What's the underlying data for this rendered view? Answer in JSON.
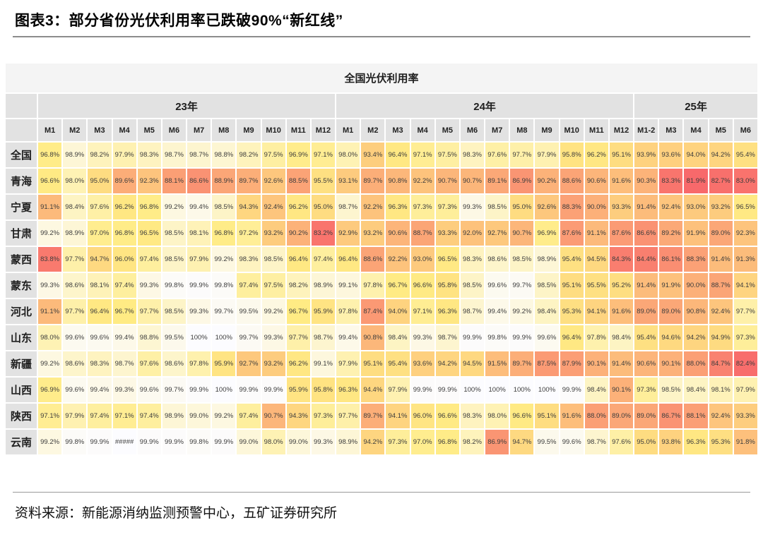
{
  "figure_title": "图表3：部分省份光伏利用率已跌破90%“新红线”",
  "source": "资料来源：新能源消纳监测预警中心，五矿证券研究所",
  "colors": {
    "scale_low": "#F8696B",
    "scale_mid": "#FFEB84",
    "scale_high": "#FCFCFF",
    "header_bg": "#e2e2e2",
    "title_strip_bg": "#f4f4f4"
  },
  "chart_data": {
    "type": "heatmap",
    "title": "全国光伏利用率",
    "year_groups": [
      {
        "label": "23年",
        "span": 12
      },
      {
        "label": "24年",
        "span": 12
      },
      {
        "label": "25年",
        "span": 5
      }
    ],
    "columns": [
      "M1",
      "M2",
      "M3",
      "M4",
      "M5",
      "M6",
      "M7",
      "M8",
      "M9",
      "M10",
      "M11",
      "M12",
      "M1",
      "M2",
      "M3",
      "M4",
      "M5",
      "M6",
      "M7",
      "M8",
      "M9",
      "M10",
      "M11",
      "M12",
      "M1-2",
      "M3",
      "M4",
      "M5",
      "M6"
    ],
    "unit": "%",
    "rows": [
      {
        "label": "全国",
        "values": [
          96.8,
          98.9,
          98.2,
          97.9,
          98.3,
          98.7,
          98.7,
          98.8,
          98.2,
          97.5,
          96.9,
          97.1,
          98.0,
          93.4,
          96.4,
          97.1,
          97.5,
          98.3,
          97.6,
          97.7,
          97.9,
          95.8,
          96.2,
          95.1,
          93.9,
          93.6,
          94.0,
          94.2,
          95.4
        ]
      },
      {
        "label": "青海",
        "values": [
          96.6,
          98.0,
          95.0,
          89.6,
          92.3,
          88.1,
          86.6,
          88.9,
          89.7,
          92.6,
          88.5,
          95.5,
          93.1,
          89.7,
          90.8,
          92.2,
          90.7,
          90.7,
          89.1,
          86.9,
          90.2,
          88.6,
          90.6,
          91.6,
          90.3,
          83.3,
          81.9,
          82.7,
          83.0
        ]
      },
      {
        "label": "宁夏",
        "values": [
          91.1,
          98.4,
          97.6,
          96.2,
          96.8,
          99.2,
          99.4,
          98.5,
          94.3,
          92.4,
          96.2,
          95.0,
          98.7,
          92.2,
          96.3,
          97.3,
          97.3,
          99.3,
          98.5,
          95.0,
          92.6,
          88.3,
          90.0,
          93.3,
          91.4,
          92.4,
          93.0,
          93.2,
          96.5
        ]
      },
      {
        "label": "甘肃",
        "values": [
          99.2,
          98.9,
          97.0,
          96.8,
          96.5,
          98.5,
          98.1,
          96.8,
          97.2,
          93.2,
          90.2,
          83.2,
          92.9,
          93.2,
          90.6,
          88.7,
          93.3,
          92.0,
          92.7,
          90.7,
          96.9,
          87.6,
          91.1,
          87.6,
          86.6,
          89.2,
          91.9,
          89.0,
          92.3
        ]
      },
      {
        "label": "蒙西",
        "values": [
          83.8,
          97.7,
          94.7,
          96.0,
          97.4,
          98.5,
          97.9,
          99.2,
          98.3,
          98.5,
          96.4,
          97.4,
          96.4,
          88.6,
          92.2,
          93.0,
          96.5,
          98.3,
          98.6,
          98.5,
          98.9,
          95.4,
          94.5,
          84.3,
          84.4,
          86.1,
          88.3,
          91.4,
          91.3
        ]
      },
      {
        "label": "蒙东",
        "values": [
          99.3,
          98.6,
          98.1,
          97.4,
          99.3,
          99.8,
          99.9,
          99.8,
          97.4,
          97.5,
          98.2,
          98.9,
          99.1,
          97.8,
          96.7,
          96.6,
          95.8,
          98.5,
          99.6,
          99.7,
          98.5,
          95.1,
          95.5,
          95.2,
          91.4,
          91.9,
          90.0,
          88.7,
          94.1
        ]
      },
      {
        "label": "河北",
        "values": [
          91.1,
          97.7,
          96.4,
          96.7,
          97.7,
          98.5,
          99.3,
          99.7,
          99.5,
          99.2,
          96.7,
          95.9,
          97.8,
          87.4,
          94.0,
          97.1,
          96.3,
          98.7,
          99.4,
          99.2,
          98.4,
          95.3,
          94.1,
          91.6,
          89.0,
          89.0,
          90.8,
          92.4,
          97.7
        ]
      },
      {
        "label": "山东",
        "values": [
          98.0,
          99.6,
          99.6,
          99.4,
          98.8,
          99.5,
          100,
          100,
          99.7,
          99.3,
          97.7,
          98.7,
          99.4,
          90.8,
          98.4,
          99.3,
          98.7,
          99.9,
          99.8,
          99.9,
          99.6,
          96.4,
          97.8,
          98.4,
          95.4,
          94.6,
          94.2,
          94.9,
          97.3
        ]
      },
      {
        "label": "新疆",
        "values": [
          99.2,
          98.6,
          98.3,
          98.7,
          97.6,
          98.6,
          97.8,
          95.9,
          92.7,
          93.2,
          96.2,
          99.1,
          97.9,
          95.1,
          95.4,
          93.6,
          94.2,
          94.5,
          91.5,
          89.7,
          87.5,
          87.9,
          90.1,
          91.4,
          90.6,
          90.1,
          88.0,
          84.7,
          82.4
        ]
      },
      {
        "label": "山西",
        "values": [
          96.9,
          99.6,
          99.4,
          99.3,
          99.6,
          99.7,
          99.9,
          100,
          99.9,
          99.9,
          95.9,
          95.8,
          96.3,
          94.4,
          97.9,
          99.9,
          99.9,
          100,
          100,
          100,
          100,
          99.9,
          98.4,
          90.1,
          97.3,
          98.5,
          98.4,
          98.1,
          97.9
        ]
      },
      {
        "label": "陕西",
        "values": [
          97.1,
          97.9,
          97.4,
          97.1,
          97.4,
          98.9,
          99.0,
          99.2,
          97.4,
          90.7,
          94.3,
          97.3,
          97.7,
          89.7,
          94.1,
          96.0,
          96.6,
          98.3,
          98.0,
          96.6,
          95.1,
          91.6,
          88.0,
          89.0,
          89.0,
          86.7,
          88.1,
          92.4,
          93.3
        ]
      },
      {
        "label": "云南",
        "values": [
          99.2,
          99.8,
          99.9,
          "#####",
          99.9,
          99.9,
          99.8,
          99.9,
          99.0,
          98.0,
          99.0,
          99.3,
          98.9,
          94.2,
          97.3,
          97.0,
          96.8,
          98.2,
          86.9,
          94.7,
          99.5,
          99.6,
          98.7,
          97.6,
          95.0,
          93.8,
          96.3,
          95.3,
          91.8
        ]
      }
    ]
  }
}
